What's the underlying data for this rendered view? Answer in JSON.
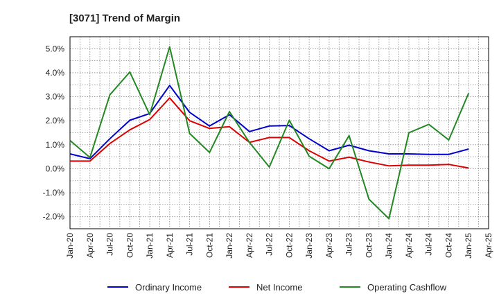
{
  "chart_data": {
    "type": "line",
    "title": "[3071]  Trend of Margin",
    "xlabel": "",
    "ylabel": "",
    "categories": [
      "Jan-20",
      "Apr-20",
      "Jul-20",
      "Oct-20",
      "Jan-21",
      "Apr-21",
      "Jul-21",
      "Oct-21",
      "Jan-22",
      "Apr-22",
      "Jul-22",
      "Oct-22",
      "Jan-23",
      "Apr-23",
      "Jul-23",
      "Oct-23",
      "Jan-24",
      "Apr-24",
      "Jul-24",
      "Oct-24",
      "Jan-25",
      "Apr-25"
    ],
    "y_tick_labels": [
      "5.0%",
      "4.0%",
      "3.0%",
      "2.0%",
      "1.0%",
      "0.0%",
      "-1.0%",
      "-2.0%"
    ],
    "y_tick_values": [
      5.0,
      4.0,
      3.0,
      2.0,
      1.0,
      0.0,
      -1.0,
      -2.0
    ],
    "ylim": [
      -2.5,
      5.5
    ],
    "grid": true,
    "legend_position": "bottom",
    "series": [
      {
        "name": "Ordinary Income",
        "color": "#0000cc",
        "values": [
          0.62,
          0.42,
          1.25,
          2.02,
          2.3,
          3.47,
          2.35,
          1.78,
          2.25,
          1.55,
          1.78,
          1.8,
          1.25,
          0.75,
          0.98,
          0.75,
          0.62,
          0.62,
          0.6,
          0.6,
          0.82,
          null
        ]
      },
      {
        "name": "Net Income",
        "color": "#dd0000",
        "values": [
          0.32,
          0.32,
          1.05,
          1.62,
          2.05,
          2.95,
          2.0,
          1.68,
          1.75,
          1.1,
          1.3,
          1.3,
          0.75,
          0.32,
          0.48,
          0.28,
          0.12,
          0.15,
          0.15,
          0.18,
          0.03,
          null
        ]
      },
      {
        "name": "Operating Cashflow",
        "color": "#228822",
        "values": [
          1.18,
          0.47,
          3.08,
          4.03,
          2.25,
          5.08,
          1.47,
          0.68,
          2.38,
          1.1,
          0.07,
          2.02,
          0.52,
          0.0,
          1.38,
          -1.27,
          -2.08,
          1.5,
          1.85,
          1.2,
          3.15,
          null
        ]
      }
    ]
  }
}
